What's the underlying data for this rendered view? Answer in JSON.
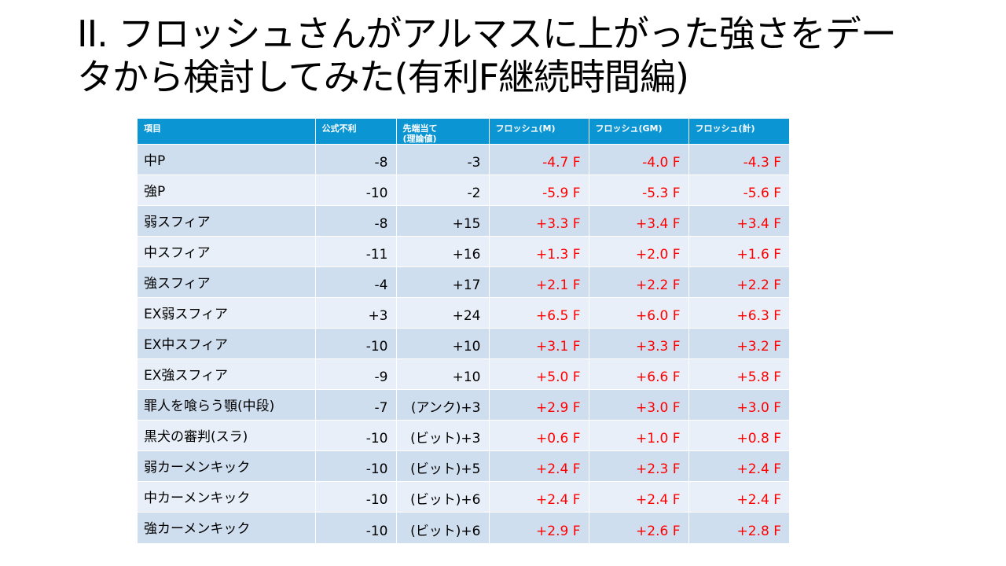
{
  "title": {
    "line1": "II. フロッシュさんがアルマスに上がった強さをデー",
    "line2": "タから検討してみた(有利F継続時間編)"
  },
  "table": {
    "headers": [
      "項目",
      "公式不利",
      "先端当て\n(理論値)",
      "フロッシュ(M)",
      "フロッシュ(GM)",
      "フロッシュ(計)"
    ],
    "rows": [
      [
        "中P",
        "-8",
        "-3",
        "-4.7 F",
        "-4.0 F",
        "-4.3 F"
      ],
      [
        "強P",
        "-10",
        "-2",
        "-5.9 F",
        "-5.3 F",
        "-5.6 F"
      ],
      [
        "弱スフィア",
        "-8",
        "+15",
        "+3.3 F",
        "+3.4 F",
        "+3.4 F"
      ],
      [
        "中スフィア",
        "-11",
        "+16",
        "+1.3 F",
        "+2.0 F",
        "+1.6 F"
      ],
      [
        "強スフィア",
        "-4",
        "+17",
        "+2.1 F",
        "+2.2 F",
        "+2.2 F"
      ],
      [
        "EX弱スフィア",
        "+3",
        "+24",
        "+6.5 F",
        "+6.0 F",
        "+6.3 F"
      ],
      [
        "EX中スフィア",
        "-10",
        "+10",
        "+3.1 F",
        "+3.3 F",
        "+3.2 F"
      ],
      [
        "EX強スフィア",
        "-9",
        "+10",
        "+5.0 F",
        "+6.6 F",
        "+5.8 F"
      ],
      [
        "罪人を喰らう顎(中段)",
        "-7",
        "(アンク)+3",
        "+2.9 F",
        "+3.0 F",
        "+3.0 F"
      ],
      [
        "黒犬の審判(スラ)",
        "-10",
        "(ビット)+3",
        "+0.6 F",
        "+1.0 F",
        "+0.8 F"
      ],
      [
        "弱カーメンキック",
        "-10",
        "(ビット)+5",
        "+2.4 F",
        "+2.3 F",
        "+2.4 F"
      ],
      [
        "中カーメンキック",
        "-10",
        "(ビット)+6",
        "+2.4 F",
        "+2.4 F",
        "+2.4 F"
      ],
      [
        "強カーメンキック",
        "-10",
        "(ビット)+6",
        "+2.9 F",
        "+2.6 F",
        "+2.8 F"
      ]
    ]
  },
  "colors": {
    "header_bg": "#0b96d3",
    "row_dark": "#cfdeef",
    "row_light": "#e8eff8",
    "frame_text": "#ff0000"
  }
}
